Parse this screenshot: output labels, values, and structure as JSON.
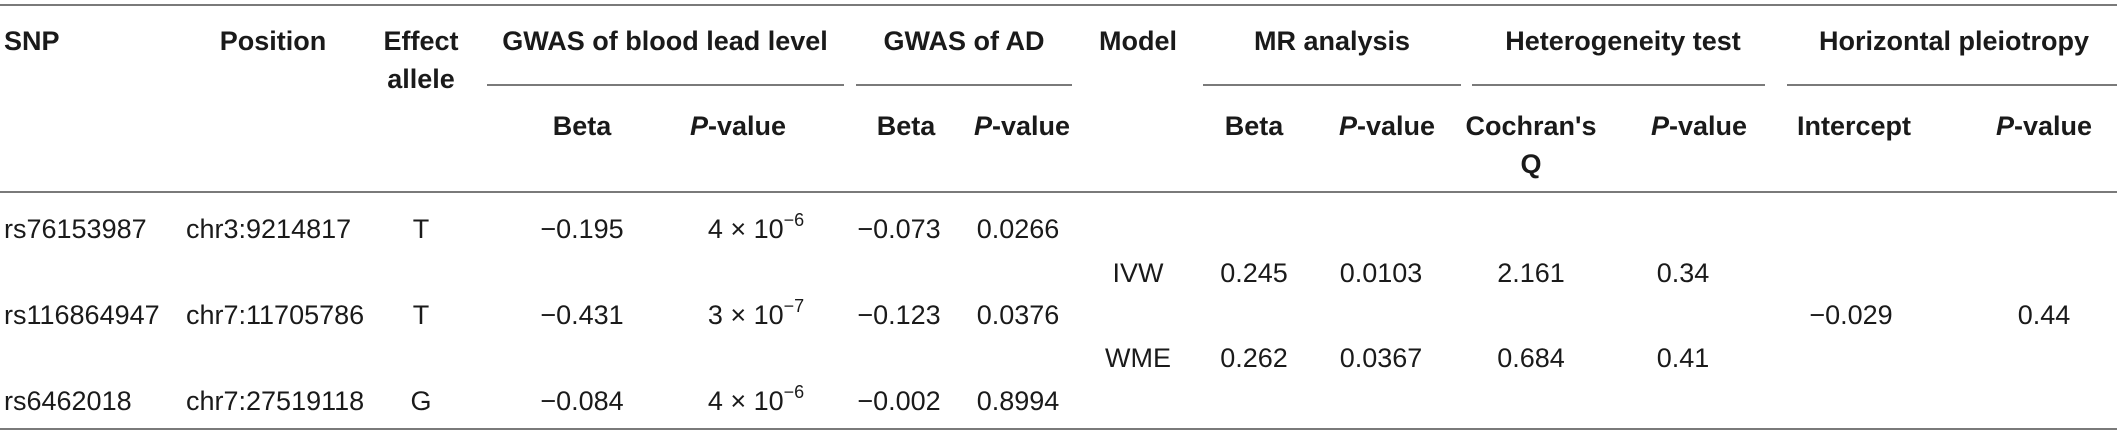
{
  "headers": {
    "snp": "SNP",
    "position": "Position",
    "effect_allele_1": "Effect",
    "effect_allele_2": "allele",
    "gwas_lead": "GWAS of blood lead level",
    "gwas_ad": "GWAS of AD",
    "model": "Model",
    "mr": "MR analysis",
    "heterogeneity": "Heterogeneity test",
    "pleiotropy": "Horizontal pleiotropy",
    "beta": "Beta",
    "p_italic": "P",
    "p_suffix": "-value",
    "cochran_1": "Cochran's",
    "cochran_2": "Q",
    "intercept": "Intercept"
  },
  "rows": [
    {
      "snp": "rs76153987",
      "position": "chr3:9214817",
      "allele": "T",
      "lead_beta": "−0.195",
      "lead_p_mant": "4 × 10",
      "lead_p_exp": "−6",
      "ad_beta": "−0.073",
      "ad_p": "0.0266"
    },
    {
      "snp": "rs116864947",
      "position": "chr7:11705786",
      "allele": "T",
      "lead_beta": "−0.431",
      "lead_p_mant": "3 × 10",
      "lead_p_exp": "−7",
      "ad_beta": "−0.123",
      "ad_p": "0.0376"
    },
    {
      "snp": "rs6462018",
      "position": "chr7:27519118",
      "allele": "G",
      "lead_beta": "−0.084",
      "lead_p_mant": "4 × 10",
      "lead_p_exp": "−6",
      "ad_beta": "−0.002",
      "ad_p": "0.8994"
    }
  ],
  "models": [
    {
      "model": "IVW",
      "mr_beta": "0.245",
      "mr_p": "0.0103",
      "cochran_q": "2.161",
      "het_p": "0.34"
    },
    {
      "model": "WME",
      "mr_beta": "0.262",
      "mr_p": "0.0367",
      "cochran_q": "0.684",
      "het_p": "0.41"
    }
  ],
  "pleiotropy": {
    "intercept": "−0.029",
    "p_value": "0.44"
  }
}
